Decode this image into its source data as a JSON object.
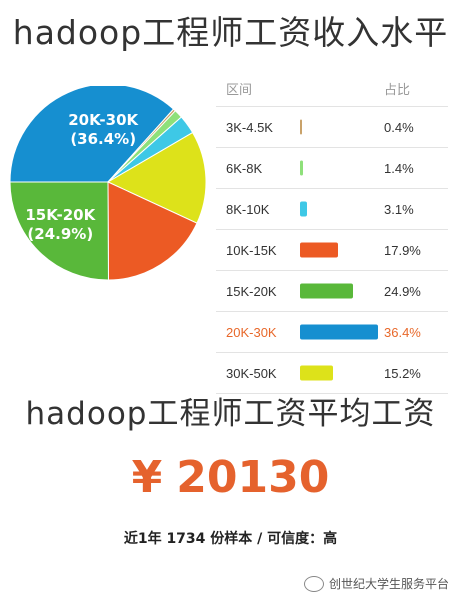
{
  "header": {
    "title": "hadoop工程师工资收入水平"
  },
  "table": {
    "col_range": "区间",
    "col_pct": "占比"
  },
  "chart_data": {
    "type": "pie",
    "title": "hadoop工程师工资收入水平",
    "categories": [
      "3K-4.5K",
      "6K-8K",
      "8K-10K",
      "10K-15K",
      "15K-20K",
      "20K-30K",
      "30K-50K"
    ],
    "values": [
      0.4,
      1.4,
      3.1,
      17.9,
      24.9,
      36.4,
      15.2
    ],
    "pct_labels": [
      "0.4%",
      "1.4%",
      "3.1%",
      "17.9%",
      "24.9%",
      "36.4%",
      "15.2%"
    ],
    "colors": [
      "#c9a26a",
      "#8ee07a",
      "#3ec8e6",
      "#ec5a24",
      "#59b83a",
      "#168fd0",
      "#dde21a"
    ],
    "highlight": "20K-30K",
    "highlight_color": "#e8682a",
    "slice_labels": [
      {
        "category": "20K-30K",
        "line1": "20K-30K",
        "line2": "(36.4%)"
      },
      {
        "category": "15K-20K",
        "line1": "15K-20K",
        "line2": "(24.9%)"
      }
    ]
  },
  "average": {
    "title": "hadoop工程师工资平均工资",
    "currency": "¥",
    "amount": "20130",
    "note": "近1年 1734 份样本 / 可信度：高"
  },
  "watermark": {
    "text": "创世纪大学生服务平台",
    "icon": "wechat-icon"
  }
}
